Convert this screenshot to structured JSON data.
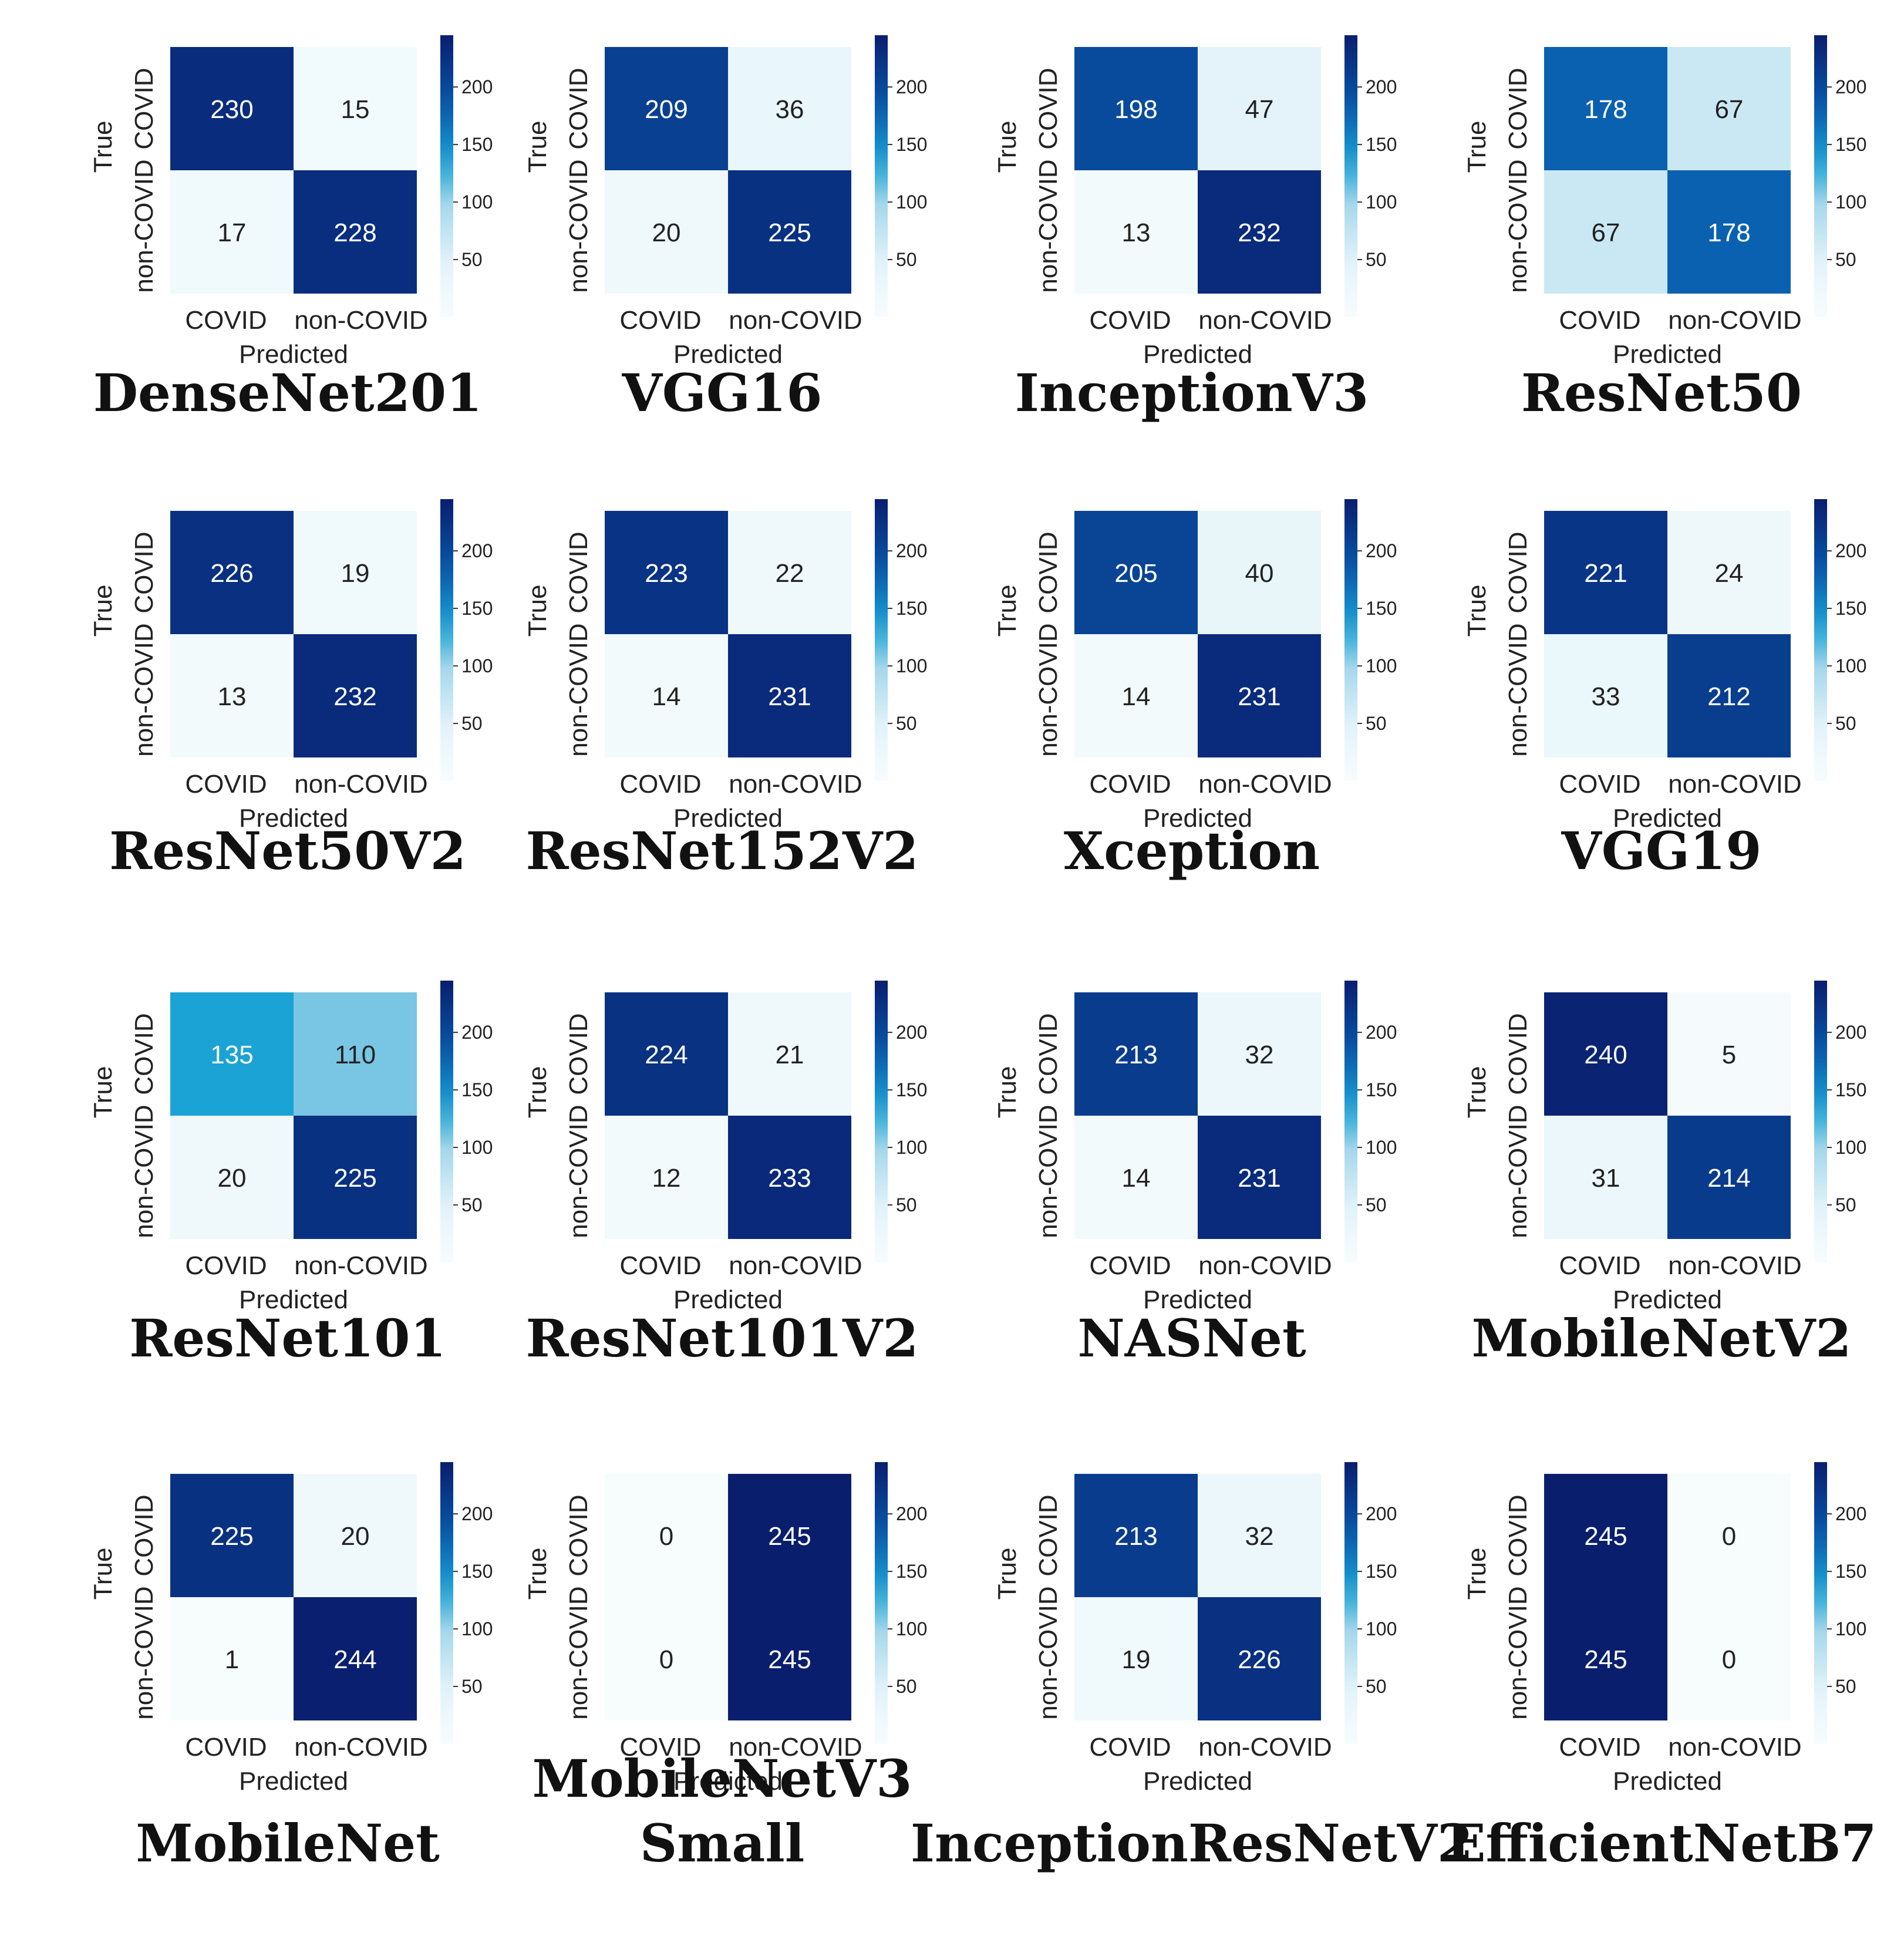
{
  "colors": {
    "low": "#f7fcfd",
    "mid_low": "#deebf7",
    "mid": "#9ecae1",
    "mid_high": "#1aa3d4",
    "high": "#08306b",
    "max": "#0a1e6e"
  },
  "shared": {
    "xlabel": "Predicted",
    "ylabel": "True",
    "categories": [
      "COVID",
      "non-COVID"
    ],
    "colorbar_ticks": [
      50,
      100,
      150,
      200
    ],
    "colorbar_range": [
      0,
      245
    ]
  },
  "chart_data": [
    {
      "type": "heatmap",
      "title": "DenseNet201",
      "title_lines": [
        "DenseNet201"
      ],
      "matrix": [
        [
          230,
          15
        ],
        [
          17,
          228
        ]
      ]
    },
    {
      "type": "heatmap",
      "title": "VGG16",
      "title_lines": [
        "VGG16"
      ],
      "matrix": [
        [
          209,
          36
        ],
        [
          20,
          225
        ]
      ]
    },
    {
      "type": "heatmap",
      "title": "InceptionV3",
      "title_lines": [
        "InceptionV3"
      ],
      "matrix": [
        [
          198,
          47
        ],
        [
          13,
          232
        ]
      ]
    },
    {
      "type": "heatmap",
      "title": "ResNet50",
      "title_lines": [
        "ResNet50"
      ],
      "matrix": [
        [
          178,
          67
        ],
        [
          67,
          178
        ]
      ]
    },
    {
      "type": "heatmap",
      "title": "ResNet50V2",
      "title_lines": [
        "ResNet50V2"
      ],
      "matrix": [
        [
          226,
          19
        ],
        [
          13,
          232
        ]
      ]
    },
    {
      "type": "heatmap",
      "title": "ResNet152V2",
      "title_lines": [
        "ResNet152V2"
      ],
      "matrix": [
        [
          223,
          22
        ],
        [
          14,
          231
        ]
      ]
    },
    {
      "type": "heatmap",
      "title": "Xception",
      "title_lines": [
        "Xception"
      ],
      "matrix": [
        [
          205,
          40
        ],
        [
          14,
          231
        ]
      ]
    },
    {
      "type": "heatmap",
      "title": "VGG19",
      "title_lines": [
        "VGG19"
      ],
      "matrix": [
        [
          221,
          24
        ],
        [
          33,
          212
        ]
      ]
    },
    {
      "type": "heatmap",
      "title": "ResNet101",
      "title_lines": [
        "ResNet101"
      ],
      "matrix": [
        [
          135,
          110
        ],
        [
          20,
          225
        ]
      ]
    },
    {
      "type": "heatmap",
      "title": "ResNet101V2",
      "title_lines": [
        "ResNet101V2"
      ],
      "matrix": [
        [
          224,
          21
        ],
        [
          12,
          233
        ]
      ]
    },
    {
      "type": "heatmap",
      "title": "NASNet",
      "title_lines": [
        "NASNet"
      ],
      "matrix": [
        [
          213,
          32
        ],
        [
          14,
          231
        ]
      ]
    },
    {
      "type": "heatmap",
      "title": "MobileNetV2",
      "title_lines": [
        "MobileNetV2"
      ],
      "matrix": [
        [
          240,
          5
        ],
        [
          31,
          214
        ]
      ]
    },
    {
      "type": "heatmap",
      "title": "MobileNet",
      "title_lines": [
        "MobileNet"
      ],
      "matrix": [
        [
          225,
          20
        ],
        [
          1,
          244
        ]
      ]
    },
    {
      "type": "heatmap",
      "title": "MobileNetV3 Small",
      "title_lines": [
        "MobileNetV3",
        "Small"
      ],
      "matrix": [
        [
          0,
          245
        ],
        [
          0,
          245
        ]
      ]
    },
    {
      "type": "heatmap",
      "title": "InceptionResNetV2",
      "title_lines": [
        "InceptionResNetV2"
      ],
      "matrix": [
        [
          213,
          32
        ],
        [
          19,
          226
        ]
      ]
    },
    {
      "type": "heatmap",
      "title": "EfficientNetB7",
      "title_lines": [
        "EfficientNetB7"
      ],
      "matrix": [
        [
          245,
          0
        ],
        [
          245,
          0
        ]
      ]
    }
  ]
}
